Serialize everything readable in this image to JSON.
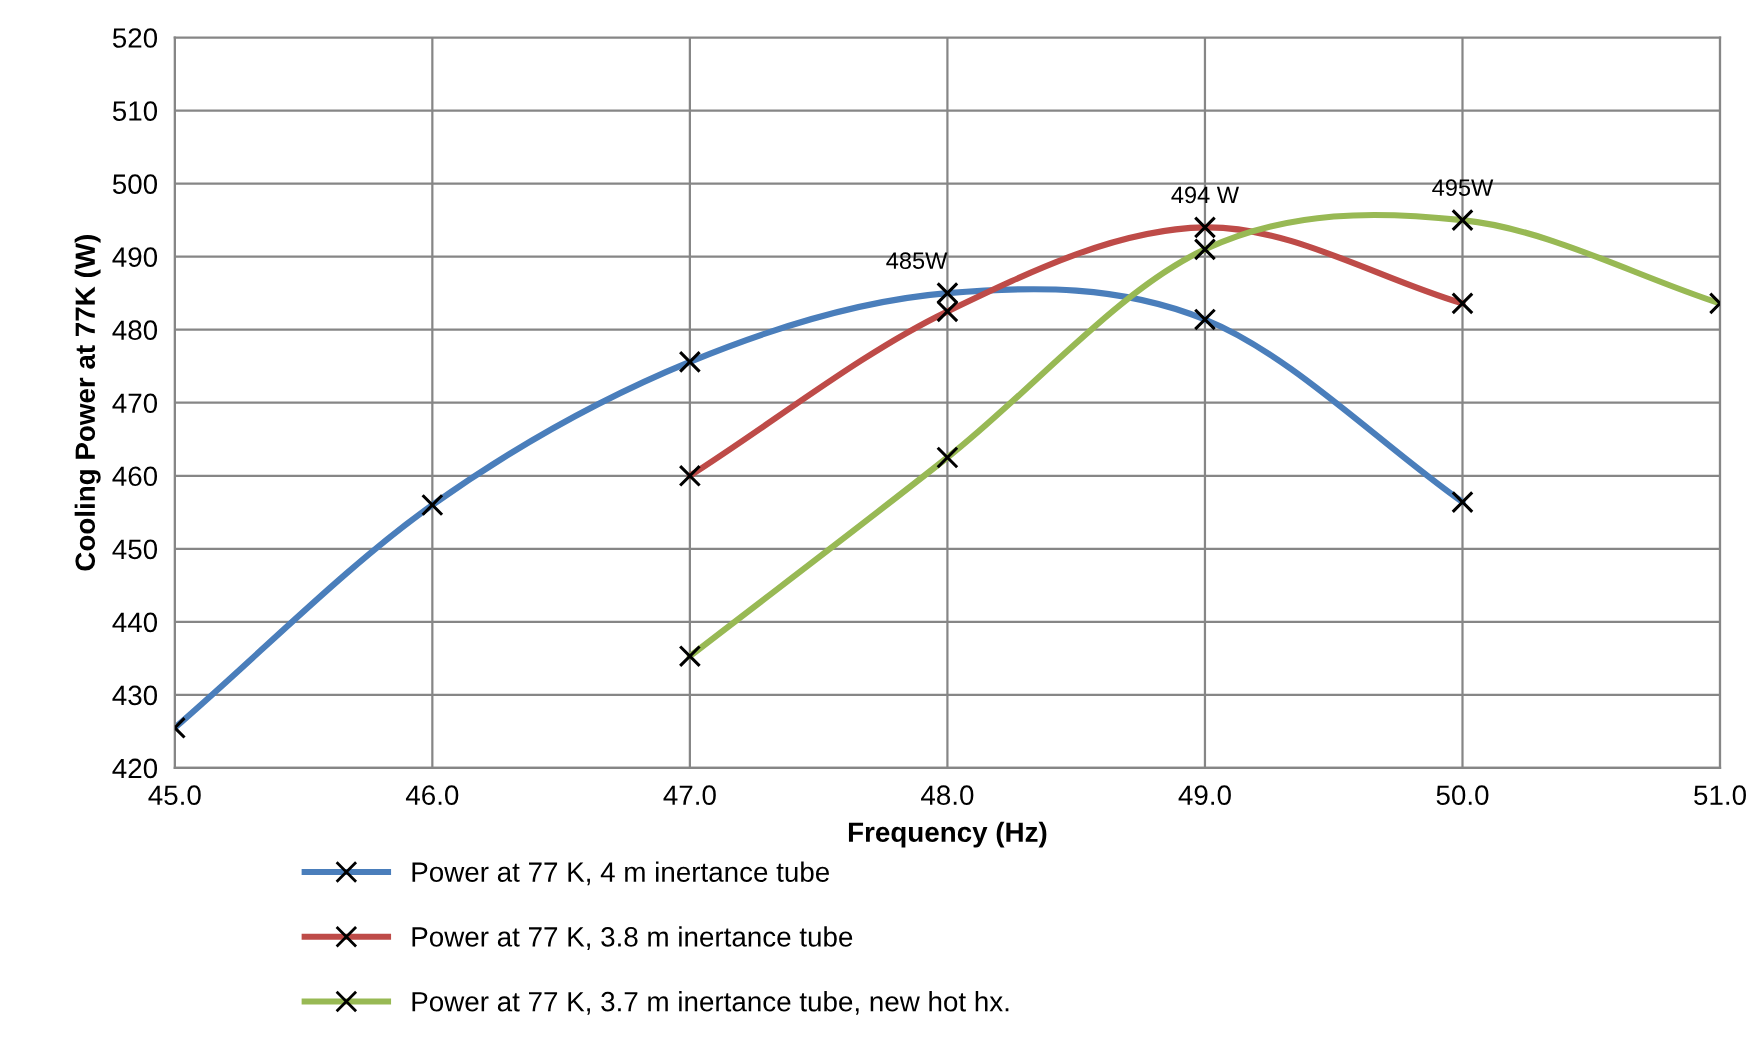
{
  "chart_data": {
    "type": "line",
    "xlabel": "Frequency (Hz)",
    "ylabel": "Cooling Power at 77K (W)",
    "xlim": [
      45,
      51
    ],
    "xticks": [
      {
        "value": 45,
        "label": "45.0"
      },
      {
        "value": 46,
        "label": "46.0"
      },
      {
        "value": 47,
        "label": "47.0"
      },
      {
        "value": 48,
        "label": "48.0"
      },
      {
        "value": 49,
        "label": "49.0"
      },
      {
        "value": 50,
        "label": "50.0"
      },
      {
        "value": 51,
        "label": "51.0"
      }
    ],
    "ylim": [
      420,
      520
    ],
    "yticks": [
      420,
      430,
      440,
      450,
      460,
      470,
      480,
      490,
      500,
      510,
      520
    ],
    "grid": true,
    "legend": "bottom",
    "marker": "cross",
    "line_style": "solid",
    "series": [
      {
        "name": "Power at 77 K, 4 m inertance tube",
        "color": "#4a7ebb",
        "x": [
          45,
          46,
          47,
          48,
          49,
          50
        ],
        "values": [
          425.5,
          456,
          475.6,
          485,
          481.4,
          456.4
        ]
      },
      {
        "name": "Power at 77 K, 3.8 m inertance tube",
        "color": "#be4b48",
        "x": [
          47,
          48,
          49,
          50
        ],
        "values": [
          460,
          482.5,
          494,
          483.6
        ]
      },
      {
        "name": "Power at 77 K, 3.7 m inertance tube, new hot hx.",
        "color": "#98b954",
        "x": [
          47,
          48,
          49,
          50,
          51
        ],
        "values": [
          435.3,
          462.5,
          491,
          495,
          483.6
        ]
      }
    ],
    "annotations": [
      {
        "text": "485W",
        "x": 48,
        "y": 485
      },
      {
        "text": "494 W",
        "x": 49,
        "y": 494
      },
      {
        "text": "495W",
        "x": 50,
        "y": 495
      }
    ]
  }
}
